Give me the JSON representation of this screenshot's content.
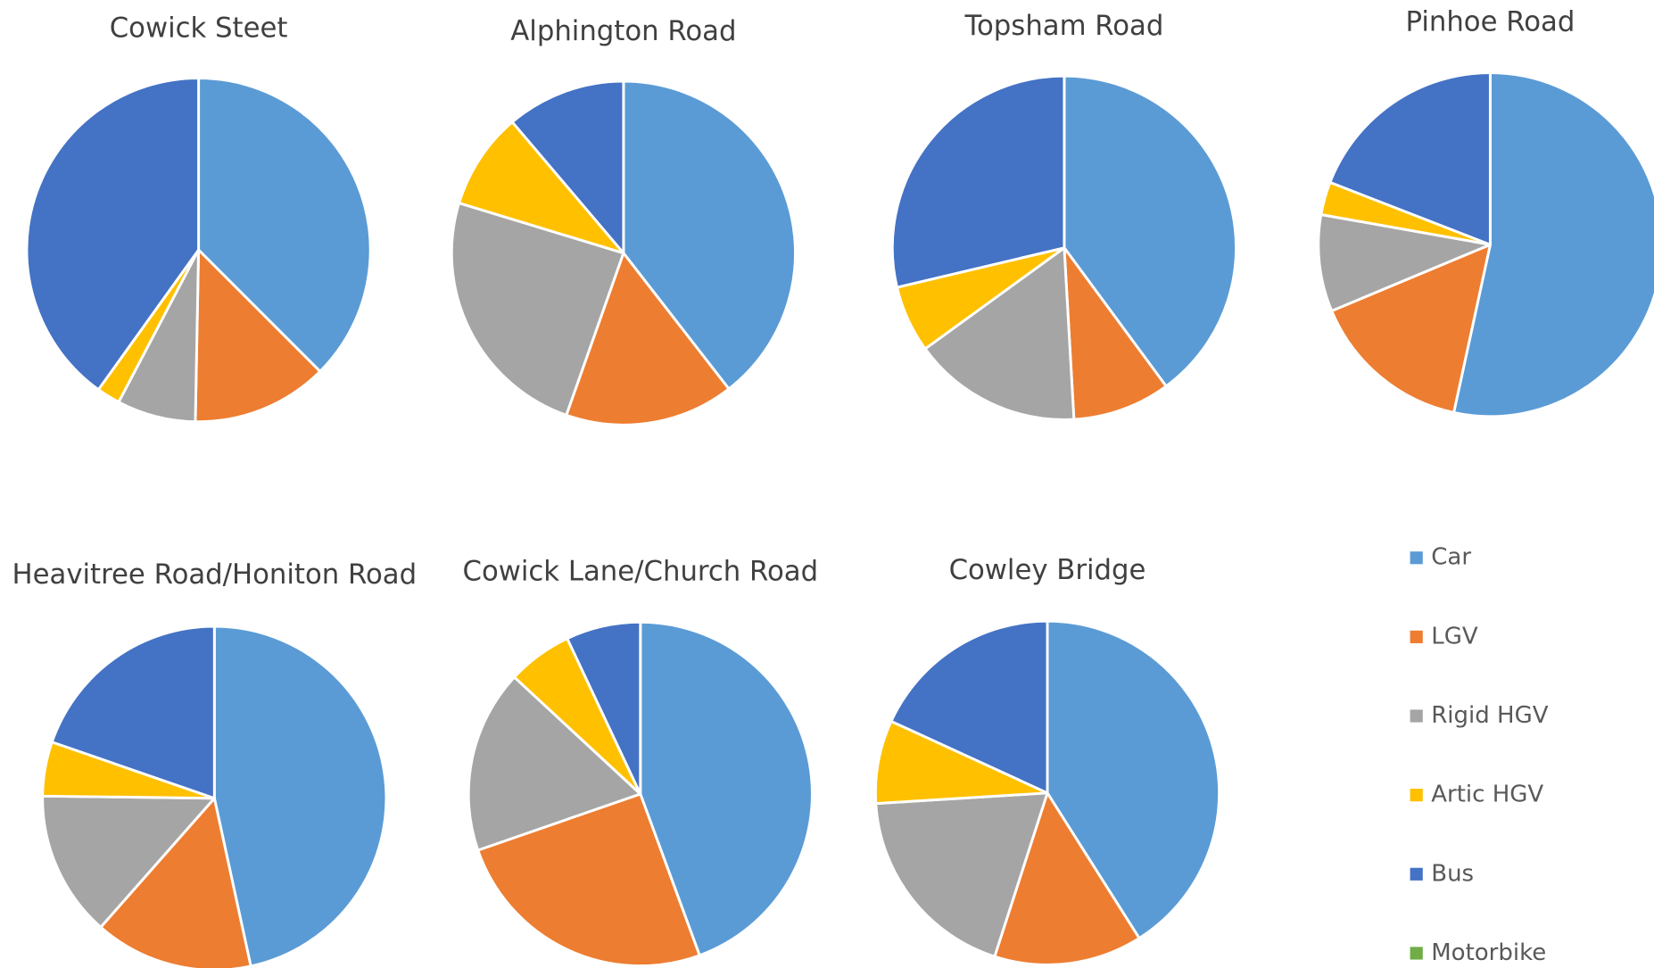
{
  "chart_data": [
    {
      "type": "pie",
      "title": "Cowick Steet",
      "categories": [
        "Car",
        "LGV",
        "Rigid HGV",
        "Artic HGV",
        "Bus",
        "Motorbike"
      ],
      "colors": [
        "#5b9bd5",
        "#ed7d31",
        "#a5a5a5",
        "#ffc000",
        "#4472c4",
        "#70ad47"
      ],
      "values": [
        37.5,
        12.8,
        7.4,
        2.2,
        40.1,
        0
      ]
    },
    {
      "type": "pie",
      "title": "Alphington Road",
      "categories": [
        "Car",
        "LGV",
        "Rigid HGV",
        "Artic HGV",
        "Bus",
        "Motorbike"
      ],
      "colors": [
        "#5b9bd5",
        "#ed7d31",
        "#a5a5a5",
        "#ffc000",
        "#4472c4",
        "#70ad47"
      ],
      "values": [
        39.5,
        15.9,
        24.3,
        9.1,
        11.2,
        0
      ]
    },
    {
      "type": "pie",
      "title": "Topsham Road",
      "categories": [
        "Car",
        "LGV",
        "Rigid HGV",
        "Artic HGV",
        "Bus",
        "Motorbike"
      ],
      "colors": [
        "#5b9bd5",
        "#ed7d31",
        "#a5a5a5",
        "#ffc000",
        "#4472c4",
        "#70ad47"
      ],
      "values": [
        39.9,
        9.2,
        15.9,
        6.3,
        28.7,
        0
      ]
    },
    {
      "type": "pie",
      "title": "Pinhoe Road",
      "categories": [
        "Car",
        "LGV",
        "Rigid HGV",
        "Artic HGV",
        "Bus",
        "Motorbike"
      ],
      "colors": [
        "#5b9bd5",
        "#ed7d31",
        "#a5a5a5",
        "#ffc000",
        "#4472c4",
        "#70ad47"
      ],
      "values": [
        53.4,
        15.3,
        9.1,
        3.1,
        19.1,
        0
      ]
    },
    {
      "type": "pie",
      "title": "Heavitree Road/Honiton Road",
      "categories": [
        "Car",
        "LGV",
        "Rigid HGV",
        "Artic HGV",
        "Bus",
        "Motorbike"
      ],
      "colors": [
        "#5b9bd5",
        "#ed7d31",
        "#a5a5a5",
        "#ffc000",
        "#4472c4",
        "#70ad47"
      ],
      "values": [
        46.6,
        14.9,
        13.7,
        5.1,
        19.7,
        0
      ]
    },
    {
      "type": "pie",
      "title": "Cowick Lane/Church Road",
      "categories": [
        "Car",
        "LGV",
        "Rigid HGV",
        "Artic HGV",
        "Bus",
        "Motorbike"
      ],
      "colors": [
        "#5b9bd5",
        "#ed7d31",
        "#a5a5a5",
        "#ffc000",
        "#4472c4",
        "#70ad47"
      ],
      "values": [
        44.4,
        25.3,
        17.2,
        6.1,
        7.0,
        0
      ]
    },
    {
      "type": "pie",
      "title": "Cowley Bridge",
      "categories": [
        "Car",
        "LGV",
        "Rigid HGV",
        "Artic HGV",
        "Bus",
        "Motorbike"
      ],
      "colors": [
        "#5b9bd5",
        "#ed7d31",
        "#a5a5a5",
        "#ffc000",
        "#4472c4",
        "#70ad47"
      ],
      "values": [
        40.9,
        13.9,
        19.0,
        7.8,
        18.1,
        0
      ]
    }
  ]
}
